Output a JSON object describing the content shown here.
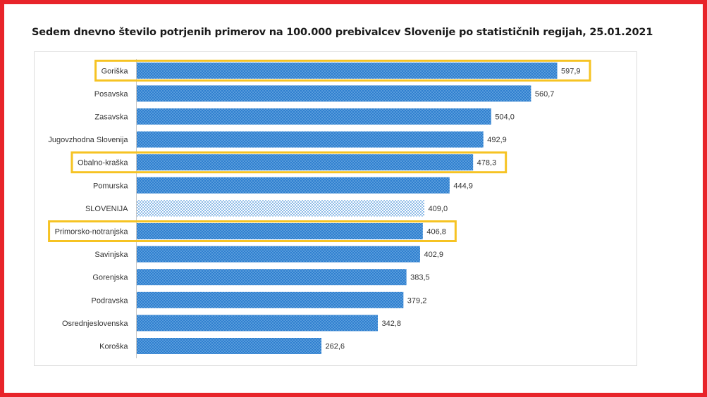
{
  "title": "Sedem dnevno število potrjenih primerov na 100.000  prebivalcev Slovenije po statističnih regijah, 25.01.2021",
  "chart_data": {
    "type": "bar",
    "orientation": "horizontal",
    "title": "Sedem dnevno število potrjenih primerov na 100.000  prebivalcev Slovenije po statističnih regijah, 25.01.2021",
    "xlim": [
      0,
      650
    ],
    "grid": false,
    "categories": [
      "Goriška",
      "Posavska",
      "Zasavska",
      "Jugovzhodna Slovenija",
      "Obalno-kraška",
      "Pomurska",
      "SLOVENIJA",
      "Primorsko-notranjska",
      "Savinjska",
      "Gorenjska",
      "Podravska",
      "Osrednjeslovenska",
      "Koroška"
    ],
    "values": [
      597.9,
      560.7,
      504.0,
      492.9,
      478.3,
      444.9,
      409.0,
      406.8,
      402.9,
      383.5,
      379.2,
      342.8,
      262.6
    ],
    "value_labels": [
      "597,9",
      "560,7",
      "504,0",
      "492,9",
      "478,3",
      "444,9",
      "409,0",
      "406,8",
      "402,9",
      "383,5",
      "379,2",
      "342,8",
      "262,6"
    ],
    "highlighted": [
      "Goriška",
      "Obalno-kraška",
      "Primorsko-notranjska"
    ],
    "national_total": "SLOVENIJA",
    "colors": {
      "bar": "#2f7fcf",
      "bar_dots": "#8fc3ee",
      "total_bar": "#ffffff",
      "total_dots": "#3a8ad6",
      "highlight": "#f6c323",
      "frame": "#e8242a"
    }
  }
}
